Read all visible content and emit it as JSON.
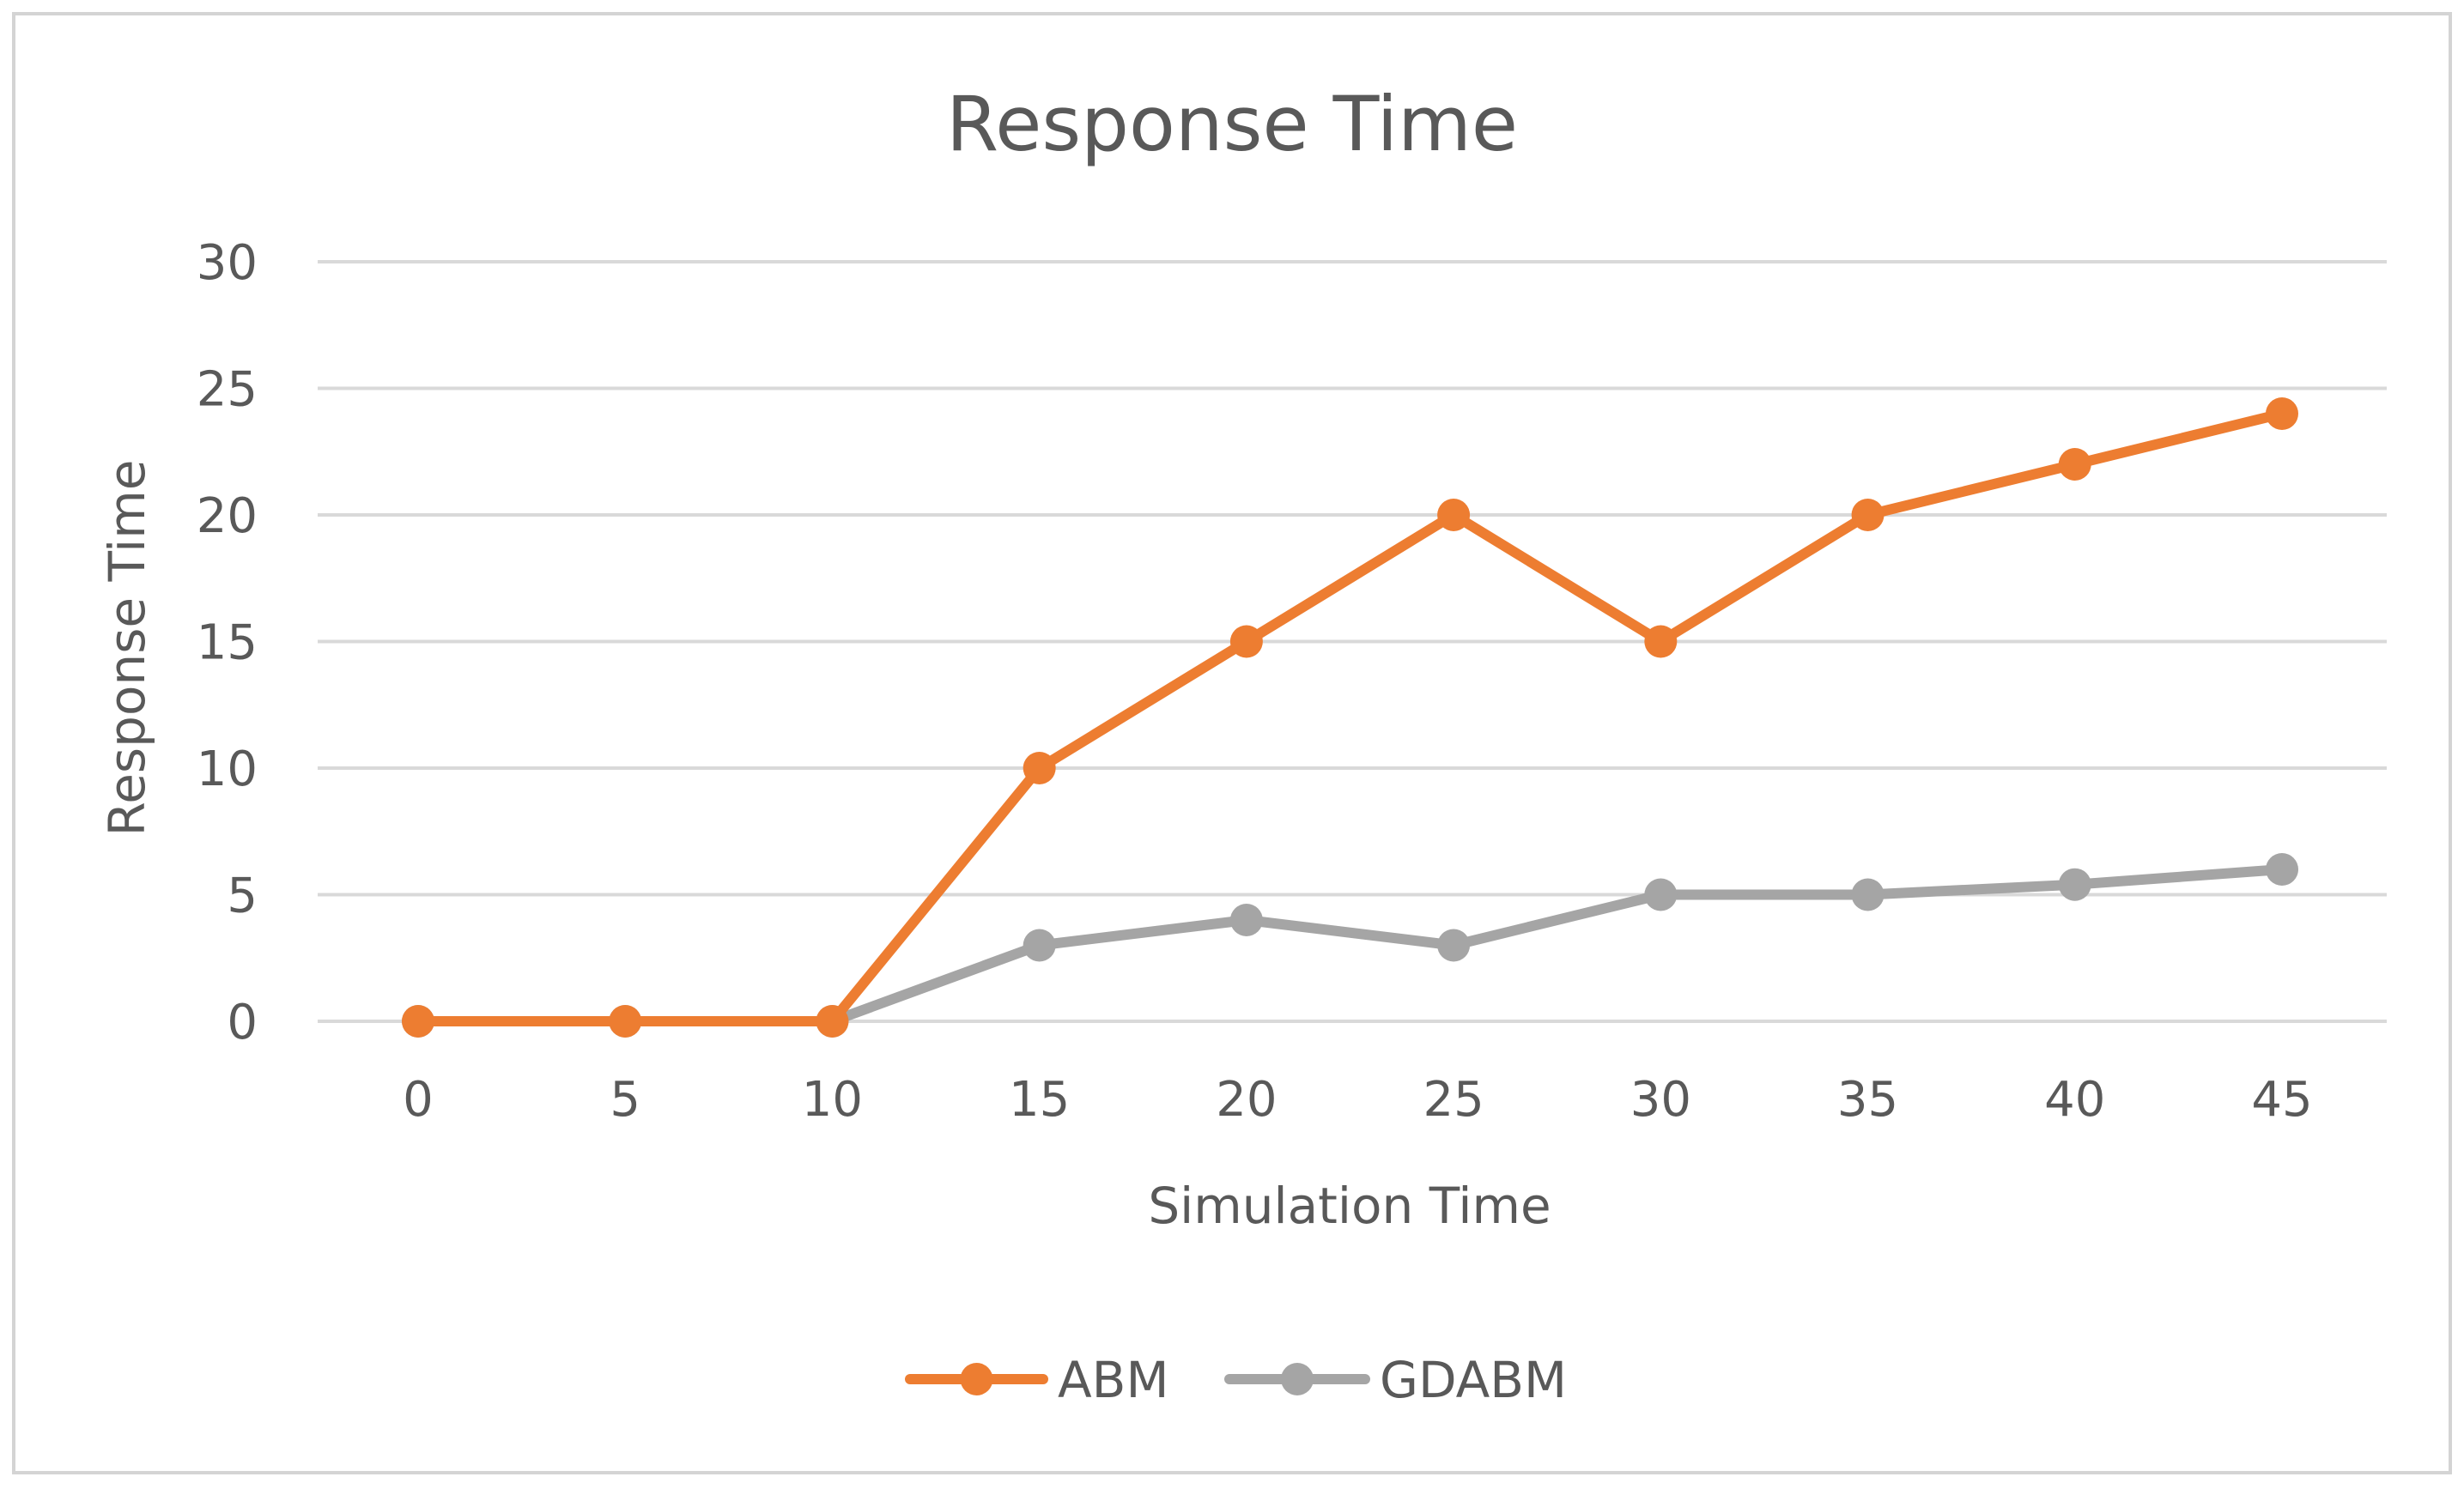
{
  "chart_data": {
    "type": "line",
    "title": "Response Time",
    "xlabel": "Simulation Time",
    "ylabel": "Response Time",
    "categories": [
      "0",
      "5",
      "10",
      "15",
      "20",
      "25",
      "30",
      "35",
      "40",
      "45"
    ],
    "x": [
      0,
      5,
      10,
      15,
      20,
      25,
      30,
      35,
      40,
      45
    ],
    "y_ticks": [
      "0",
      "5",
      "10",
      "15",
      "20",
      "25",
      "30"
    ],
    "ylim": [
      0,
      30
    ],
    "grid": true,
    "legend_position": "bottom",
    "series": [
      {
        "name": "ABM",
        "color": "#ed7d31",
        "values": [
          0,
          0,
          0,
          10,
          15,
          20,
          15,
          20,
          22,
          24
        ]
      },
      {
        "name": "GDABM",
        "color": "#a5a5a5",
        "values": [
          0,
          0,
          0,
          3,
          4,
          3,
          5,
          5,
          5.4,
          6
        ]
      }
    ]
  }
}
